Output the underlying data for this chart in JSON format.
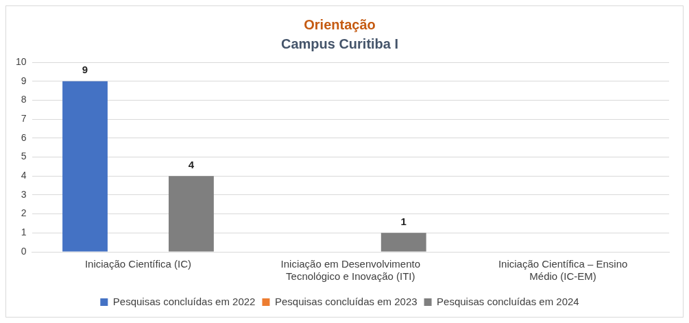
{
  "chart_data": {
    "type": "bar",
    "title": "Orientação",
    "subtitle": "Campus Curitiba I",
    "categories": [
      "Iniciação Científica (IC)",
      "Iniciação em Desenvolvimento Tecnológico e Inovação (ITI)",
      "Iniciação Científica – Ensino Médio (IC-EM)"
    ],
    "series": [
      {
        "name": "Pesquisas concluídas em 2022",
        "color": "#4472c4",
        "values": [
          9,
          null,
          null
        ]
      },
      {
        "name": "Pesquisas concluídas em 2023",
        "color": "#ed7d31",
        "values": [
          null,
          null,
          null
        ]
      },
      {
        "name": "Pesquisas concluídas em 2024",
        "color": "#7f7f7f",
        "values": [
          4,
          1,
          null
        ]
      }
    ],
    "ylim": [
      0,
      10
    ],
    "yticks": [
      0,
      1,
      2,
      3,
      4,
      5,
      6,
      7,
      8,
      9,
      10
    ],
    "grid": "y",
    "legend": "bottom",
    "data_labels": true
  }
}
